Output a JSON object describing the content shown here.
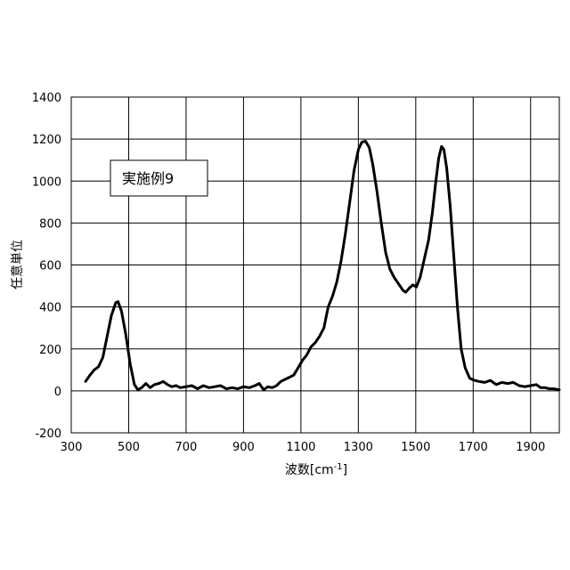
{
  "chart_data": {
    "type": "line",
    "title": "",
    "xlabel": "波数[cm",
    "xlabel_sup": "-1",
    "xlabel_end": "]",
    "ylabel": "任意単位",
    "xlim": [
      300,
      2000
    ],
    "ylim": [
      -200,
      1400
    ],
    "xticks": [
      "300",
      "500",
      "700",
      "900",
      "1100",
      "1300",
      "1500",
      "1700",
      "1900"
    ],
    "yticks": [
      "-200",
      "0",
      "200",
      "400",
      "600",
      "800",
      "1000",
      "1200",
      "1400"
    ],
    "grid": true,
    "legend": "none",
    "annotation": "実施例9",
    "line_color": "#000000",
    "series": [
      {
        "values": [
          [
            350,
            45
          ],
          [
            365,
            75
          ],
          [
            380,
            100
          ],
          [
            395,
            115
          ],
          [
            410,
            160
          ],
          [
            425,
            260
          ],
          [
            440,
            360
          ],
          [
            455,
            420
          ],
          [
            463,
            425
          ],
          [
            475,
            380
          ],
          [
            490,
            270
          ],
          [
            505,
            130
          ],
          [
            520,
            30
          ],
          [
            532,
            5
          ],
          [
            545,
            15
          ],
          [
            560,
            35
          ],
          [
            575,
            15
          ],
          [
            590,
            30
          ],
          [
            605,
            35
          ],
          [
            620,
            45
          ],
          [
            635,
            30
          ],
          [
            650,
            20
          ],
          [
            665,
            25
          ],
          [
            680,
            15
          ],
          [
            700,
            20
          ],
          [
            720,
            25
          ],
          [
            740,
            10
          ],
          [
            760,
            25
          ],
          [
            780,
            15
          ],
          [
            800,
            20
          ],
          [
            820,
            25
          ],
          [
            840,
            10
          ],
          [
            860,
            15
          ],
          [
            880,
            10
          ],
          [
            900,
            20
          ],
          [
            920,
            15
          ],
          [
            940,
            25
          ],
          [
            955,
            35
          ],
          [
            970,
            5
          ],
          [
            985,
            20
          ],
          [
            1000,
            15
          ],
          [
            1015,
            25
          ],
          [
            1030,
            45
          ],
          [
            1045,
            55
          ],
          [
            1060,
            65
          ],
          [
            1075,
            75
          ],
          [
            1090,
            110
          ],
          [
            1105,
            145
          ],
          [
            1120,
            170
          ],
          [
            1135,
            210
          ],
          [
            1150,
            230
          ],
          [
            1165,
            260
          ],
          [
            1180,
            300
          ],
          [
            1195,
            400
          ],
          [
            1210,
            450
          ],
          [
            1225,
            520
          ],
          [
            1240,
            620
          ],
          [
            1255,
            750
          ],
          [
            1270,
            900
          ],
          [
            1285,
            1050
          ],
          [
            1300,
            1150
          ],
          [
            1312,
            1185
          ],
          [
            1325,
            1190
          ],
          [
            1338,
            1160
          ],
          [
            1350,
            1080
          ],
          [
            1365,
            950
          ],
          [
            1380,
            800
          ],
          [
            1395,
            660
          ],
          [
            1410,
            580
          ],
          [
            1425,
            540
          ],
          [
            1440,
            510
          ],
          [
            1455,
            480
          ],
          [
            1465,
            470
          ],
          [
            1478,
            490
          ],
          [
            1490,
            505
          ],
          [
            1502,
            495
          ],
          [
            1515,
            540
          ],
          [
            1530,
            630
          ],
          [
            1545,
            720
          ],
          [
            1558,
            850
          ],
          [
            1570,
            1000
          ],
          [
            1580,
            1110
          ],
          [
            1590,
            1165
          ],
          [
            1598,
            1150
          ],
          [
            1608,
            1060
          ],
          [
            1620,
            880
          ],
          [
            1632,
            650
          ],
          [
            1645,
            400
          ],
          [
            1658,
            200
          ],
          [
            1672,
            110
          ],
          [
            1688,
            60
          ],
          [
            1705,
            50
          ],
          [
            1720,
            45
          ],
          [
            1740,
            40
          ],
          [
            1760,
            50
          ],
          [
            1780,
            30
          ],
          [
            1800,
            40
          ],
          [
            1820,
            35
          ],
          [
            1840,
            40
          ],
          [
            1860,
            25
          ],
          [
            1880,
            20
          ],
          [
            1900,
            25
          ],
          [
            1920,
            30
          ],
          [
            1935,
            15
          ],
          [
            1950,
            15
          ],
          [
            1965,
            10
          ],
          [
            1980,
            10
          ],
          [
            2000,
            5
          ]
        ]
      }
    ]
  }
}
